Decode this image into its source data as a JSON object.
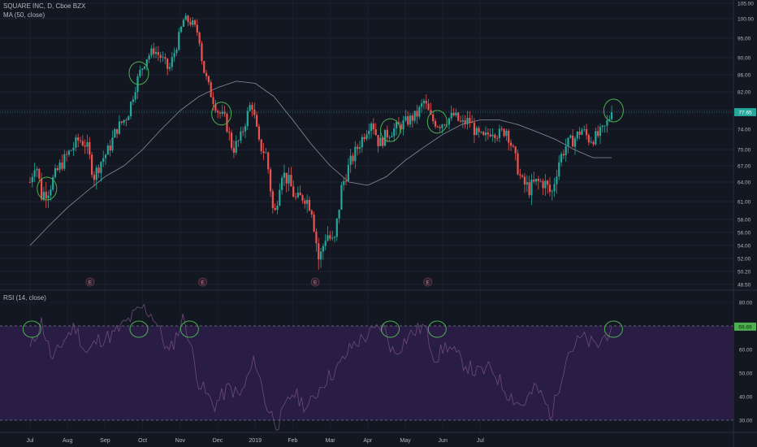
{
  "chart_data": [
    {
      "type": "candlestick",
      "title": "SQUARE INC, D, Cboe BZX",
      "indicator_label": "MA (50, close)",
      "ylim": [
        48.5,
        105
      ],
      "y_ticks": [
        "105.00",
        "100.00",
        "95.00",
        "90.00",
        "86.00",
        "82.00",
        "78.00",
        "74.00",
        "70.00",
        "67.00",
        "64.00",
        "61.00",
        "58.00",
        "56.00",
        "54.00",
        "52.00",
        "50.20",
        "48.50"
      ],
      "x_ticks": [
        "Jul",
        "Aug",
        "Sep",
        "Oct",
        "Nov",
        "Dec",
        "2019",
        "Feb",
        "Mar",
        "Apr",
        "May",
        "Jun",
        "Jul"
      ],
      "last_price": "77.65",
      "last_price_value": 77.65,
      "earnings_marker": "E",
      "earnings_months": [
        1.6,
        4.6,
        7.6,
        10.6
      ],
      "price_path": [
        [
          0,
          64
        ],
        [
          0.15,
          68
        ],
        [
          0.3,
          62
        ],
        [
          0.5,
          63
        ],
        [
          0.8,
          67
        ],
        [
          1.1,
          70
        ],
        [
          1.3,
          72
        ],
        [
          1.5,
          71
        ],
        [
          1.7,
          65
        ],
        [
          1.9,
          68
        ],
        [
          2.1,
          70
        ],
        [
          2.3,
          74
        ],
        [
          2.6,
          77
        ],
        [
          2.9,
          86
        ],
        [
          3.1,
          90
        ],
        [
          3.3,
          92
        ],
        [
          3.5,
          90
        ],
        [
          3.7,
          87
        ],
        [
          3.9,
          93
        ],
        [
          4.1,
          100
        ],
        [
          4.3,
          99
        ],
        [
          4.5,
          96
        ],
        [
          4.6,
          88
        ],
        [
          4.8,
          82
        ],
        [
          5.0,
          78
        ],
        [
          5.2,
          76
        ],
        [
          5.4,
          70
        ],
        [
          5.6,
          72
        ],
        [
          5.9,
          80
        ],
        [
          6.1,
          71
        ],
        [
          6.3,
          69
        ],
        [
          6.5,
          58
        ],
        [
          6.7,
          66
        ],
        [
          6.9,
          64
        ],
        [
          7.1,
          61
        ],
        [
          7.3,
          62
        ],
        [
          7.5,
          60
        ],
        [
          7.7,
          51.5
        ],
        [
          7.9,
          56
        ],
        [
          8.1,
          54
        ],
        [
          8.3,
          63
        ],
        [
          8.5,
          67
        ],
        [
          8.7,
          70
        ],
        [
          8.9,
          73
        ],
        [
          9.1,
          76
        ],
        [
          9.3,
          71
        ],
        [
          9.5,
          73
        ],
        [
          9.7,
          74
        ],
        [
          9.9,
          75
        ],
        [
          10.1,
          76
        ],
        [
          10.3,
          77
        ],
        [
          10.5,
          80
        ],
        [
          10.7,
          76
        ],
        [
          10.9,
          75
        ],
        [
          11.1,
          76
        ],
        [
          11.3,
          77
        ],
        [
          11.5,
          75
        ],
        [
          11.7,
          76
        ],
        [
          11.9,
          73
        ],
        [
          12.1,
          72
        ],
        [
          12.3,
          74
        ],
        [
          12.5,
          73
        ],
        [
          12.7,
          74
        ],
        [
          12.9,
          69
        ],
        [
          13.1,
          64
        ],
        [
          13.3,
          63
        ],
        [
          13.5,
          64
        ],
        [
          13.7,
          64
        ],
        [
          13.9,
          62
        ],
        [
          14.1,
          68
        ],
        [
          14.3,
          71
        ],
        [
          14.5,
          72
        ],
        [
          14.7,
          74
        ],
        [
          14.9,
          72
        ],
        [
          15.1,
          72.5
        ],
        [
          15.3,
          74
        ],
        [
          15.5,
          77.65
        ]
      ],
      "ma_path": [
        [
          0,
          54
        ],
        [
          0.5,
          57
        ],
        [
          1,
          60
        ],
        [
          1.5,
          62.5
        ],
        [
          2,
          65
        ],
        [
          2.5,
          67
        ],
        [
          3,
          70
        ],
        [
          3.5,
          74
        ],
        [
          4,
          78
        ],
        [
          4.5,
          81
        ],
        [
          5,
          83
        ],
        [
          5.5,
          84.5
        ],
        [
          6,
          84
        ],
        [
          6.5,
          81
        ],
        [
          7,
          76
        ],
        [
          7.5,
          71
        ],
        [
          8,
          67
        ],
        [
          8.5,
          64
        ],
        [
          9,
          63.5
        ],
        [
          9.5,
          65
        ],
        [
          10,
          68
        ],
        [
          10.5,
          70.5
        ],
        [
          11,
          73
        ],
        [
          11.5,
          75
        ],
        [
          12,
          76
        ],
        [
          12.5,
          76
        ],
        [
          13,
          75
        ],
        [
          13.5,
          73.5
        ],
        [
          14,
          72
        ],
        [
          14.5,
          70
        ],
        [
          15,
          68.5
        ],
        [
          15.5,
          68.5
        ]
      ],
      "annotation_months": [
        0.45,
        2.9,
        5.1,
        9.6,
        10.85,
        15.55
      ],
      "colors": {
        "up": "#26a69a",
        "down": "#ef5350",
        "ma": "#8a8f9c",
        "annotation": "#4caf50",
        "last_price_tag": "#26a69a"
      }
    },
    {
      "type": "line",
      "title": "RSI (14, close)",
      "ylim": [
        27,
        86
      ],
      "y_ticks": [
        "80.00",
        "60.00",
        "50.00",
        "40.00",
        "30.00"
      ],
      "y_tick_values": [
        80,
        60,
        50,
        40,
        30
      ],
      "upper_band": 70,
      "lower_band": 30,
      "last_value": "69.69",
      "last_value_num": 69.69,
      "rsi_path": [
        [
          0,
          60
        ],
        [
          0.3,
          72
        ],
        [
          0.6,
          55
        ],
        [
          0.9,
          64
        ],
        [
          1.2,
          70
        ],
        [
          1.5,
          58
        ],
        [
          1.8,
          64
        ],
        [
          2.2,
          66
        ],
        [
          2.6,
          72
        ],
        [
          3.0,
          78
        ],
        [
          3.3,
          74
        ],
        [
          3.7,
          58
        ],
        [
          4.1,
          74
        ],
        [
          4.5,
          46
        ],
        [
          4.9,
          36
        ],
        [
          5.3,
          44
        ],
        [
          5.6,
          40
        ],
        [
          6.0,
          56
        ],
        [
          6.3,
          36
        ],
        [
          6.6,
          28
        ],
        [
          7.0,
          42
        ],
        [
          7.4,
          35
        ],
        [
          7.8,
          46
        ],
        [
          8.2,
          52
        ],
        [
          8.6,
          62
        ],
        [
          9.0,
          66
        ],
        [
          9.4,
          70
        ],
        [
          9.7,
          58
        ],
        [
          10.1,
          66
        ],
        [
          10.5,
          70
        ],
        [
          10.8,
          56
        ],
        [
          11.1,
          62
        ],
        [
          11.5,
          55
        ],
        [
          11.9,
          50
        ],
        [
          12.3,
          52
        ],
        [
          12.7,
          42
        ],
        [
          13.1,
          36
        ],
        [
          13.5,
          44
        ],
        [
          13.9,
          32
        ],
        [
          14.3,
          58
        ],
        [
          14.7,
          65
        ],
        [
          15.1,
          61
        ],
        [
          15.5,
          69.69
        ]
      ],
      "annotation_months": [
        0.05,
        2.9,
        4.25,
        9.6,
        10.85,
        15.55
      ],
      "colors": {
        "line": "#6d4a7c",
        "band_fill": "#2a1d45",
        "band_line": "#787b86",
        "value_tag": "#4caf50",
        "annotation": "#4caf50"
      }
    }
  ]
}
